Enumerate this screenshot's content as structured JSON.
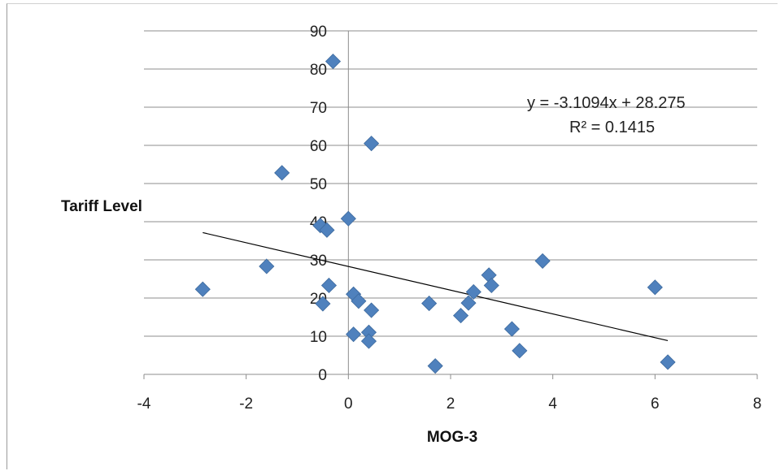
{
  "chart_data": {
    "type": "scatter",
    "title": "",
    "xlabel": "MOG-3",
    "ylabel": "Tariff Level",
    "xlim": [
      -4,
      8
    ],
    "ylim": [
      0,
      90
    ],
    "x_ticks": [
      "-4",
      "-2",
      "0",
      "2",
      "4",
      "6",
      "8"
    ],
    "y_ticks": [
      "0",
      "10",
      "20",
      "30",
      "40",
      "50",
      "60",
      "70",
      "80",
      "90"
    ],
    "grid": "horizontal",
    "marker_color": "#4f81bd",
    "series": [
      {
        "points": [
          {
            "x": -0.3,
            "y": 82
          },
          {
            "x": 0.45,
            "y": 60.5
          },
          {
            "x": -1.3,
            "y": 52.8
          },
          {
            "x": 0.0,
            "y": 40.8
          },
          {
            "x": -0.55,
            "y": 39.0
          },
          {
            "x": -0.42,
            "y": 37.8
          },
          {
            "x": -1.6,
            "y": 28.3
          },
          {
            "x": -2.85,
            "y": 22.3
          },
          {
            "x": -0.38,
            "y": 23.3
          },
          {
            "x": 0.1,
            "y": 21.0
          },
          {
            "x": 0.2,
            "y": 19.2
          },
          {
            "x": -0.5,
            "y": 18.5
          },
          {
            "x": 0.45,
            "y": 16.8
          },
          {
            "x": 0.1,
            "y": 10.5
          },
          {
            "x": 0.4,
            "y": 11.0
          },
          {
            "x": 0.4,
            "y": 8.7
          },
          {
            "x": 1.7,
            "y": 2.2
          },
          {
            "x": 1.58,
            "y": 18.6
          },
          {
            "x": 2.2,
            "y": 15.4
          },
          {
            "x": 2.35,
            "y": 18.7
          },
          {
            "x": 2.45,
            "y": 21.6
          },
          {
            "x": 2.75,
            "y": 26.0
          },
          {
            "x": 2.8,
            "y": 23.3
          },
          {
            "x": 3.8,
            "y": 29.7
          },
          {
            "x": 3.2,
            "y": 11.9
          },
          {
            "x": 3.35,
            "y": 6.2
          },
          {
            "x": 6.0,
            "y": 22.8
          },
          {
            "x": 6.25,
            "y": 3.2
          }
        ]
      }
    ],
    "trendline": {
      "slope": -3.1094,
      "intercept": 28.275,
      "x_range": [
        -2.85,
        6.25
      ]
    },
    "annotations": {
      "equation": "y = -3.1094x + 28.275",
      "r_squared": "R² = 0.1415"
    }
  }
}
